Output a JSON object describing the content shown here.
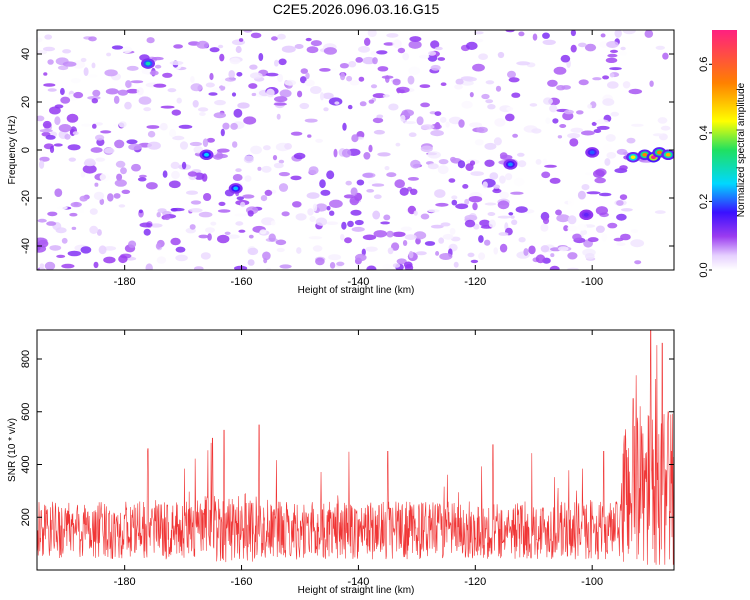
{
  "chart_data": [
    {
      "type": "heatmap",
      "title": "C2E5.2026.096.03.16.G15",
      "xlabel": "Height of straight line (km)",
      "ylabel": "Frequency (Hz)",
      "xlim": [
        -195,
        -86
      ],
      "ylim": [
        -50,
        50
      ],
      "xticks": [
        -180,
        -160,
        -140,
        -120,
        -100
      ],
      "yticks": [
        40,
        20,
        0,
        -20,
        -40
      ],
      "colorbar": {
        "label": "Normalized spectral amplitude",
        "range": [
          0,
          0.7
        ],
        "ticks": [
          0.0,
          0.2,
          0.4,
          0.6
        ]
      },
      "background_blob_count": 900,
      "background_blob_max_amplitude": 0.12,
      "features": [
        {
          "x": -176,
          "y": 36,
          "value": 0.3
        },
        {
          "x": -166,
          "y": -2,
          "value": 0.25
        },
        {
          "x": -161,
          "y": -16,
          "value": 0.24
        },
        {
          "x": -114,
          "y": -6,
          "value": 0.22
        },
        {
          "x": -100,
          "y": -1,
          "value": 0.2
        },
        {
          "x": -101,
          "y": -27,
          "value": 0.14
        },
        {
          "x": -93,
          "y": -3,
          "value": 0.45
        },
        {
          "x": -91,
          "y": -2,
          "value": 0.55
        },
        {
          "x": -89.5,
          "y": -3,
          "value": 0.7
        },
        {
          "x": -88.5,
          "y": -1,
          "value": 0.55
        },
        {
          "x": -87,
          "y": -2,
          "value": 0.5
        }
      ]
    },
    {
      "type": "line",
      "xlabel": "Height of straight line (km)",
      "ylabel": "SNR (10 * v/v)",
      "xlim": [
        -195,
        -86
      ],
      "ylim": [
        0,
        910
      ],
      "xticks": [
        -180,
        -160,
        -140,
        -120,
        -100
      ],
      "yticks": [
        200,
        400,
        600,
        800
      ],
      "color": "#f03535",
      "samples": 1600,
      "segments": [
        {
          "x": [
            -195,
            -168
          ],
          "baseline": 150,
          "noise": 110,
          "spike_max": 470
        },
        {
          "x": [
            -168,
            -158
          ],
          "baseline": 160,
          "noise": 130,
          "spike_max": 550
        },
        {
          "x": [
            -158,
            -95
          ],
          "baseline": 150,
          "noise": 110,
          "spike_max": 480
        },
        {
          "x": [
            -95,
            -86
          ],
          "baseline": 300,
          "noise": 300,
          "spike_max": 910
        }
      ],
      "peaks": [
        {
          "x": -176,
          "y": 460
        },
        {
          "x": -165,
          "y": 500
        },
        {
          "x": -163,
          "y": 530
        },
        {
          "x": -157,
          "y": 550
        },
        {
          "x": -135,
          "y": 450
        },
        {
          "x": -117,
          "y": 475
        },
        {
          "x": -98,
          "y": 450
        },
        {
          "x": -93,
          "y": 650
        },
        {
          "x": -90,
          "y": 910
        },
        {
          "x": -88,
          "y": 860
        },
        {
          "x": -87,
          "y": 600
        }
      ]
    }
  ]
}
